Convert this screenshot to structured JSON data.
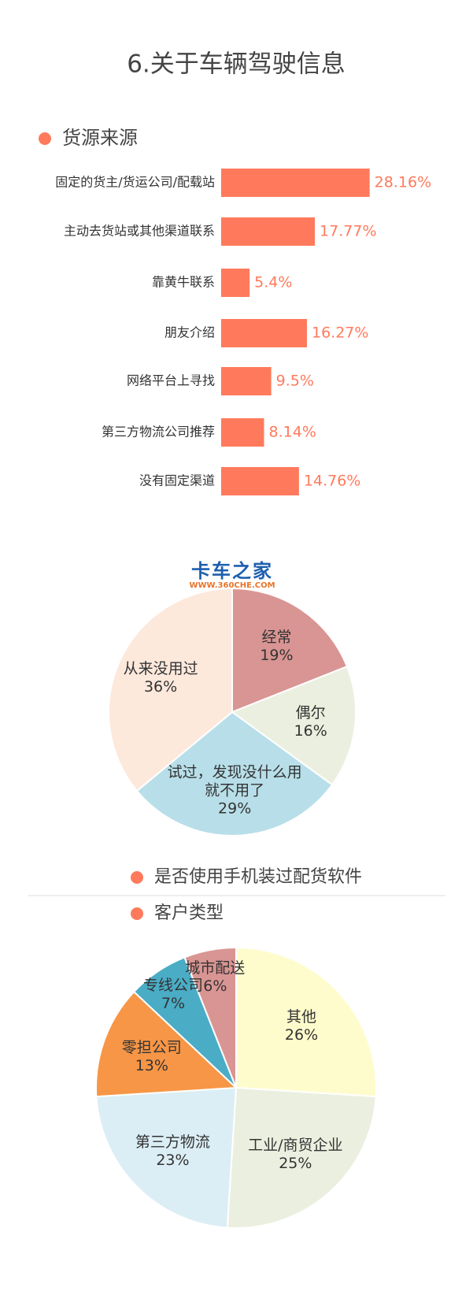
{
  "title": "6.关于车辆驾驶信息",
  "watermark": {
    "name": "卡车之家",
    "url": "WWW.360CHE.COM"
  },
  "chart_data": [
    {
      "type": "bar",
      "title": "货源来源",
      "color": "#ff7a5c",
      "categories": [
        "固定的货主/货运公司/配载站",
        "主动去货站或其他渠道联系",
        "靠黄牛联系",
        "朋友介绍",
        "网络平台上寻找",
        "第三方物流公司推荐",
        "没有固定渠道"
      ],
      "values": [
        28.16,
        17.77,
        5.4,
        16.27,
        9.5,
        8.14,
        14.76
      ],
      "value_labels": [
        "28.16%",
        "17.77%",
        "5.4%",
        "16.27%",
        "9.5%",
        "8.14%",
        "14.76%"
      ]
    },
    {
      "type": "pie",
      "title": "是否使用手机装过配货软件",
      "categories": [
        "经常",
        "偶尔",
        "试过，发现没什么用就不用了",
        "从来没用过"
      ],
      "values": [
        19,
        16,
        29,
        36
      ],
      "value_labels": [
        "19%",
        "16%",
        "29%",
        "36%"
      ],
      "colors": [
        "#d99593",
        "#ebefdf",
        "#b8dfe9",
        "#fde8dc"
      ]
    },
    {
      "type": "pie",
      "title": "客户类型",
      "categories": [
        "其他",
        "工业/商贸企业",
        "第三方物流",
        "零担公司",
        "专线公司",
        "城市配送"
      ],
      "values": [
        26,
        25,
        23,
        13,
        7,
        6
      ],
      "value_labels": [
        "26%",
        "25%",
        "23%",
        "13%",
        "7%",
        "6%"
      ],
      "colors": [
        "#fefccc",
        "#ebefdf",
        "#dbeef5",
        "#f79646",
        "#4bacc6",
        "#d99593"
      ]
    }
  ]
}
